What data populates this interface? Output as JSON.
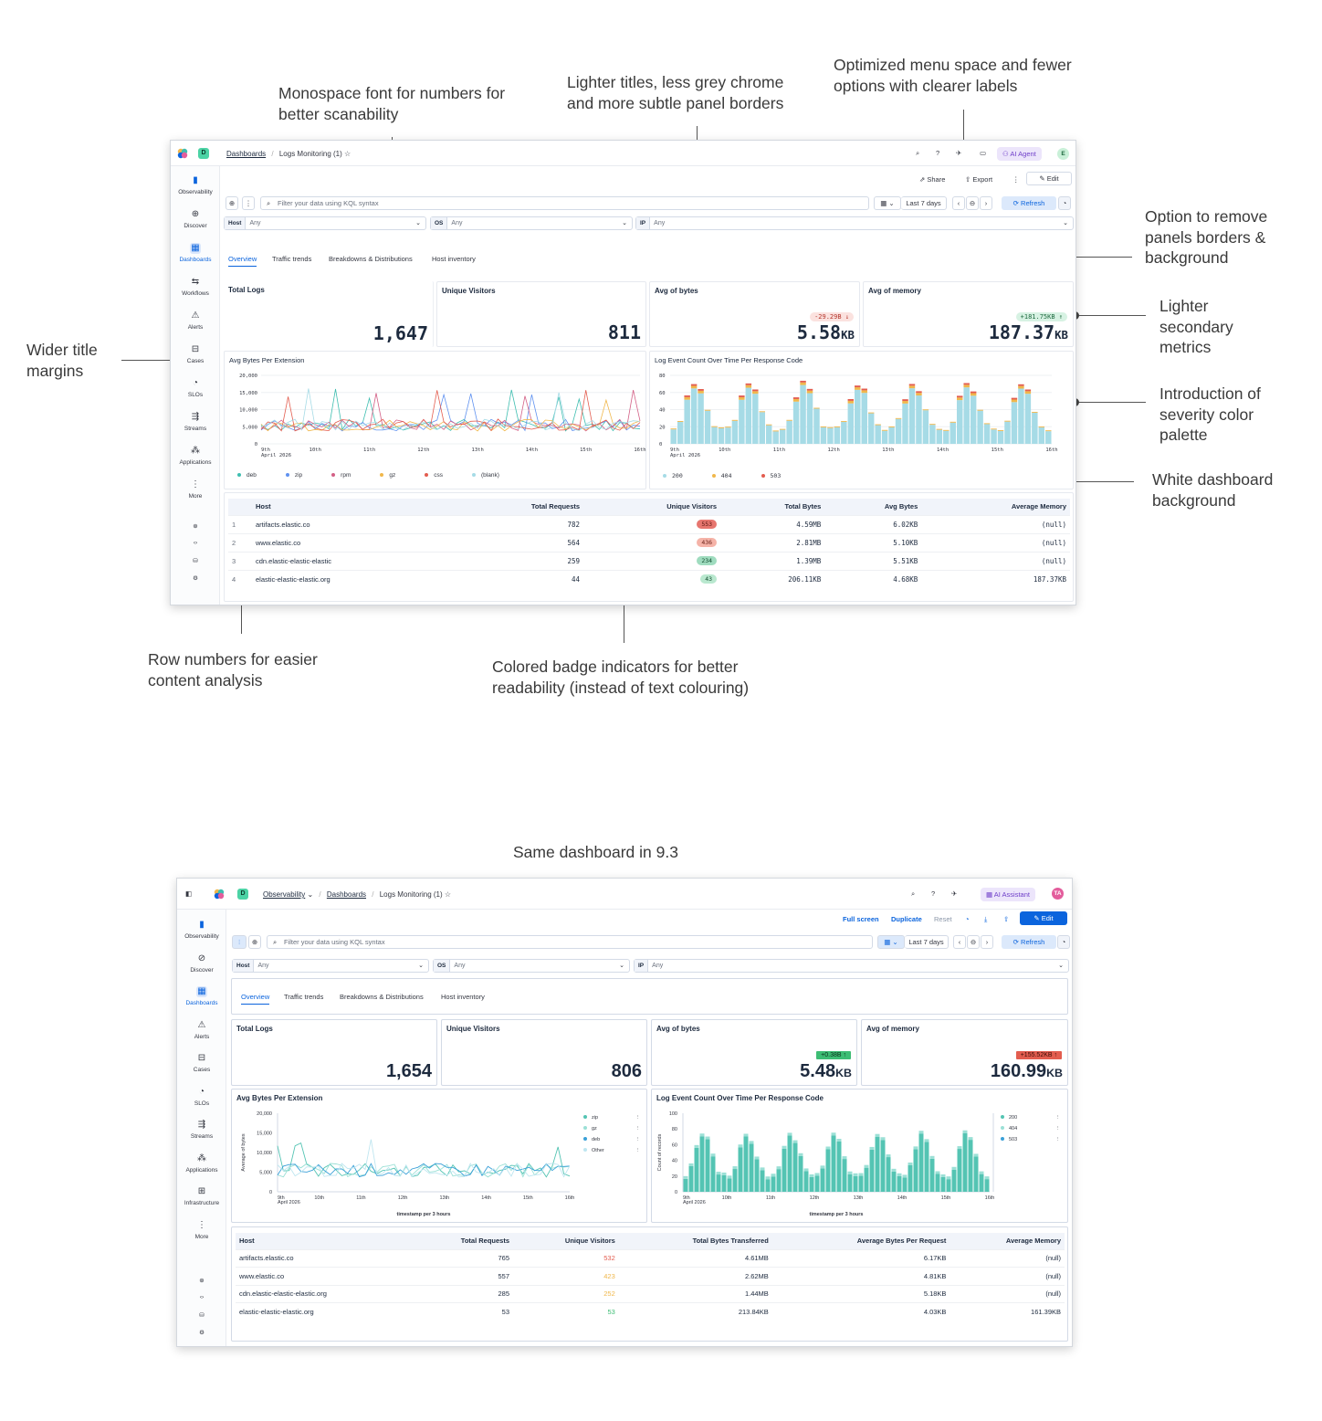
{
  "callouts": {
    "mono": "Monospace font for numbers for better scanability",
    "lighter_titles": "Lighter titles, less grey chrome and more subtle panel borders",
    "menu": "Optimized menu space and fewer options with clearer labels",
    "remove_borders": "Option to remove panels borders & background",
    "secondary": "Lighter secondary metrics",
    "severity": "Introduction of severity color palette",
    "white_bg": "White dashboard background",
    "wider_margins": "Wider title margins",
    "row_numbers": "Row numbers for easier content analysis",
    "badges": "Colored badge indicators for better readability (instead of text colouring)",
    "same_dashboard": "Same dashboard in 9.3"
  },
  "new": {
    "breadcrumb": {
      "space": "D",
      "dashboards": "Dashboards",
      "current": "Logs Monitoring (1) ☆"
    },
    "top_actions": {
      "ai": "AI Agent",
      "avatar": "E"
    },
    "toolbar": {
      "share": "Share",
      "export": "Export",
      "edit": "Edit"
    },
    "filter": {
      "placeholder": "Filter your data using KQL syntax",
      "date": "Last 7 days",
      "refresh": "Refresh"
    },
    "controls": [
      {
        "label": "Host",
        "value": "Any"
      },
      {
        "label": "OS",
        "value": "Any"
      },
      {
        "label": "IP",
        "value": "Any"
      }
    ],
    "tabs": [
      "Overview",
      "Traffic trends",
      "Breakdowns & Distributions",
      "Host inventory"
    ],
    "nav": [
      "Observability",
      "Discover",
      "Dashboards",
      "Workflows",
      "Alerts",
      "Cases",
      "SLOs",
      "Streams",
      "Applications",
      "More"
    ],
    "metrics": [
      {
        "title": "Total Logs",
        "value": "1,647",
        "unit": "",
        "delta": ""
      },
      {
        "title": "Unique Visitors",
        "value": "811",
        "unit": "",
        "delta": ""
      },
      {
        "title": "Avg of bytes",
        "value": "5.58",
        "unit": "KB",
        "delta": "-29.29B ↓"
      },
      {
        "title": "Avg of memory",
        "value": "187.37",
        "unit": "KB",
        "delta": "+181.75KB ↑"
      }
    ],
    "chart1": {
      "title": "Avg Bytes Per Extension",
      "yticks": [
        "20,000",
        "15,000",
        "10,000",
        "5,000",
        "0"
      ],
      "xticks": [
        "9th",
        "10th",
        "11th",
        "12th",
        "13th",
        "14th",
        "15th",
        "16th"
      ],
      "xsub": "April 2026",
      "legend": [
        "deb",
        "zip",
        "rpm",
        "gz",
        "css",
        "(blank)"
      ]
    },
    "chart2": {
      "title": "Log Event Count Over Time Per Response Code",
      "yticks": [
        "80",
        "60",
        "40",
        "20",
        "0"
      ],
      "xticks": [
        "9th",
        "10th",
        "11th",
        "12th",
        "13th",
        "14th",
        "15th",
        "16th"
      ],
      "xsub": "April 2026",
      "legend": [
        "200",
        "404",
        "503"
      ]
    },
    "table": {
      "headers": [
        "Host",
        "Total Requests",
        "Unique Visitors",
        "Total Bytes",
        "Avg Bytes",
        "Average Memory"
      ],
      "rows": [
        {
          "n": "1",
          "host": "artifacts.elastic.co",
          "req": "782",
          "uv": "553",
          "tb": "4.59MB",
          "ab": "6.02KB",
          "mem": "(null)"
        },
        {
          "n": "2",
          "host": "www.elastic.co",
          "req": "564",
          "uv": "436",
          "tb": "2.81MB",
          "ab": "5.10KB",
          "mem": "(null)"
        },
        {
          "n": "3",
          "host": "cdn.elastic-elastic-elastic",
          "req": "259",
          "uv": "234",
          "tb": "1.39MB",
          "ab": "5.51KB",
          "mem": "(null)"
        },
        {
          "n": "4",
          "host": "elastic-elastic-elastic.org",
          "req": "44",
          "uv": "43",
          "tb": "206.11KB",
          "ab": "4.68KB",
          "mem": "187.37KB"
        }
      ]
    }
  },
  "old": {
    "breadcrumb": {
      "space": "D",
      "observability": "Observability",
      "dashboards": "Dashboards",
      "current": "Logs Monitoring (1) ☆"
    },
    "top_actions": {
      "ai": "AI Assistant",
      "avatar": "TA"
    },
    "toolbar": {
      "fullscreen": "Full screen",
      "duplicate": "Duplicate",
      "reset": "Reset",
      "edit": "Edit"
    },
    "filter": {
      "placeholder": "Filter your data using KQL syntax",
      "date": "Last 7 days",
      "refresh": "Refresh"
    },
    "controls": [
      {
        "label": "Host",
        "value": "Any"
      },
      {
        "label": "OS",
        "value": "Any"
      },
      {
        "label": "IP",
        "value": "Any"
      }
    ],
    "tabs": [
      "Overview",
      "Traffic trends",
      "Breakdowns & Distributions",
      "Host inventory"
    ],
    "nav": [
      "Observability",
      "Discover",
      "Dashboards",
      "Alerts",
      "Cases",
      "SLOs",
      "Streams",
      "Applications",
      "Infrastructure",
      "More"
    ],
    "metrics": [
      {
        "title": "Total Logs",
        "value": "1,654",
        "unit": "",
        "delta": ""
      },
      {
        "title": "Unique Visitors",
        "value": "806",
        "unit": "",
        "delta": ""
      },
      {
        "title": "Avg of bytes",
        "value": "5.48",
        "unit": "KB",
        "delta": "+0.38B ↑"
      },
      {
        "title": "Avg of memory",
        "value": "160.99",
        "unit": "KB",
        "delta": "+155.52KB ↑"
      }
    ],
    "chart1": {
      "title": "Avg Bytes Per Extension",
      "ylabel": "Average of bytes",
      "xlabel": "timestamp per 3 hours",
      "yticks": [
        "20,000",
        "15,000",
        "10,000",
        "5,000",
        "0"
      ],
      "xticks": [
        "9th",
        "10th",
        "11th",
        "12th",
        "13th",
        "14th",
        "15th",
        "16th"
      ],
      "xsub": "April 2026",
      "legend": [
        "zip",
        "gz",
        "deb",
        "Other"
      ]
    },
    "chart2": {
      "title": "Log Event Count Over Time Per Response Code",
      "ylabel": "Count of records",
      "xlabel": "timestamp per 3 hours",
      "yticks": [
        "100",
        "80",
        "60",
        "40",
        "20",
        "0"
      ],
      "xticks": [
        "9th",
        "10th",
        "11th",
        "12th",
        "13th",
        "14th",
        "15th",
        "16th"
      ],
      "xsub": "April 2026",
      "legend": [
        "200",
        "404",
        "503"
      ]
    },
    "table": {
      "headers": [
        "Host",
        "Total Requests",
        "Unique Visitors",
        "Total Bytes Transferred",
        "Average Bytes Per Request",
        "Average Memory"
      ],
      "rows": [
        {
          "host": "artifacts.elastic.co",
          "req": "765",
          "uv": "532",
          "tb": "4.61MB",
          "ab": "6.17KB",
          "mem": "(null)"
        },
        {
          "host": "www.elastic.co",
          "req": "557",
          "uv": "423",
          "tb": "2.62MB",
          "ab": "4.81KB",
          "mem": "(null)"
        },
        {
          "host": "cdn.elastic-elastic-elastic.org",
          "req": "285",
          "uv": "252",
          "tb": "1.44MB",
          "ab": "5.18KB",
          "mem": "(null)"
        },
        {
          "host": "elastic-elastic-elastic.org",
          "req": "53",
          "uv": "53",
          "tb": "213.84KB",
          "ab": "4.03KB",
          "mem": "161.39KB"
        }
      ]
    }
  },
  "colors": {
    "accent": "#0b64dd",
    "severity_high": "#e7766f",
    "severity_mid": "#f5b3a8",
    "severity_low": "#9fdcbf",
    "bar_200": "#a6dbe6",
    "bar_404": "#f0b74b",
    "bar_503": "#e35d4f",
    "old_bar_200": "#54c4b3"
  }
}
